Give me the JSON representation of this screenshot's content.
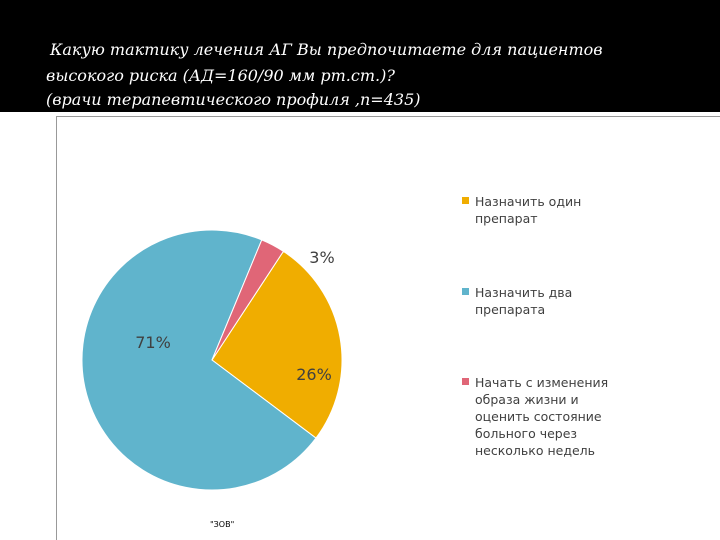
{
  "slide": {
    "title_lines": [
      "Какую тактику лечения АГ Вы предпочитаете для пациентов",
      "высокого риска (АД=160/90 мм рт.ст.)?",
      "(врачи терапевтического профиля ,n=435)"
    ],
    "footer_note": "\"ЗОВ\""
  },
  "chart_data": {
    "type": "pie",
    "title": "",
    "legend_position": "right",
    "slices": [
      {
        "label": "Назначить один препарат",
        "value": 26,
        "display": "26%",
        "color": "#f0ad00"
      },
      {
        "label": "Назначить два препарата",
        "value": 71,
        "display": "71%",
        "color": "#60b4cc"
      },
      {
        "label": "Начать с изменения образа жизни  и оценить состояние больного через несколько недель",
        "value": 3,
        "display": "3%",
        "color": "#e06677"
      }
    ],
    "legend_lines": [
      "Назначить один\nпрепарат",
      "Назначить два\nпрепарата",
      "Начать с изменения\nобраза жизни  и\nоценить состояние\nбольного через\nнесколько недель"
    ]
  }
}
